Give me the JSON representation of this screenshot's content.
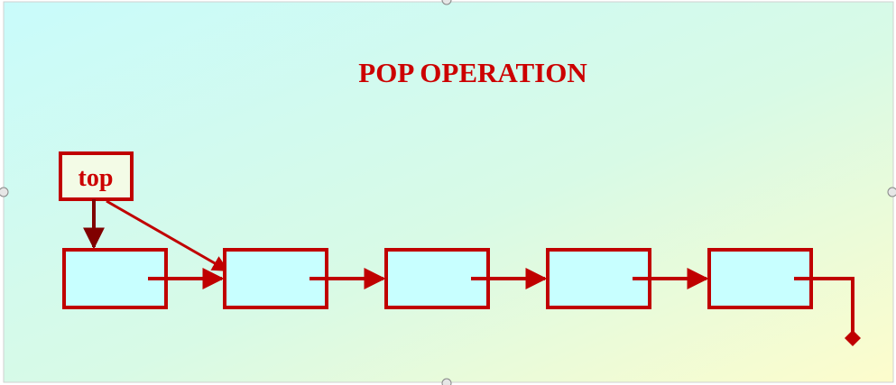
{
  "diagram": {
    "title": "POP OPERATION",
    "top_label": "top",
    "node_count": 5,
    "colors": {
      "primary_red": "#cc0000",
      "dark_red": "#800000",
      "node_fill": "#c8ffff",
      "node_border": "#c00000",
      "bg_top_left": "#c9fbfb",
      "bg_mid": "#d8fae6",
      "bg_bottom_right": "#fdfccc",
      "handle_fill": "#e6e6e6",
      "handle_stroke": "#888888"
    }
  }
}
